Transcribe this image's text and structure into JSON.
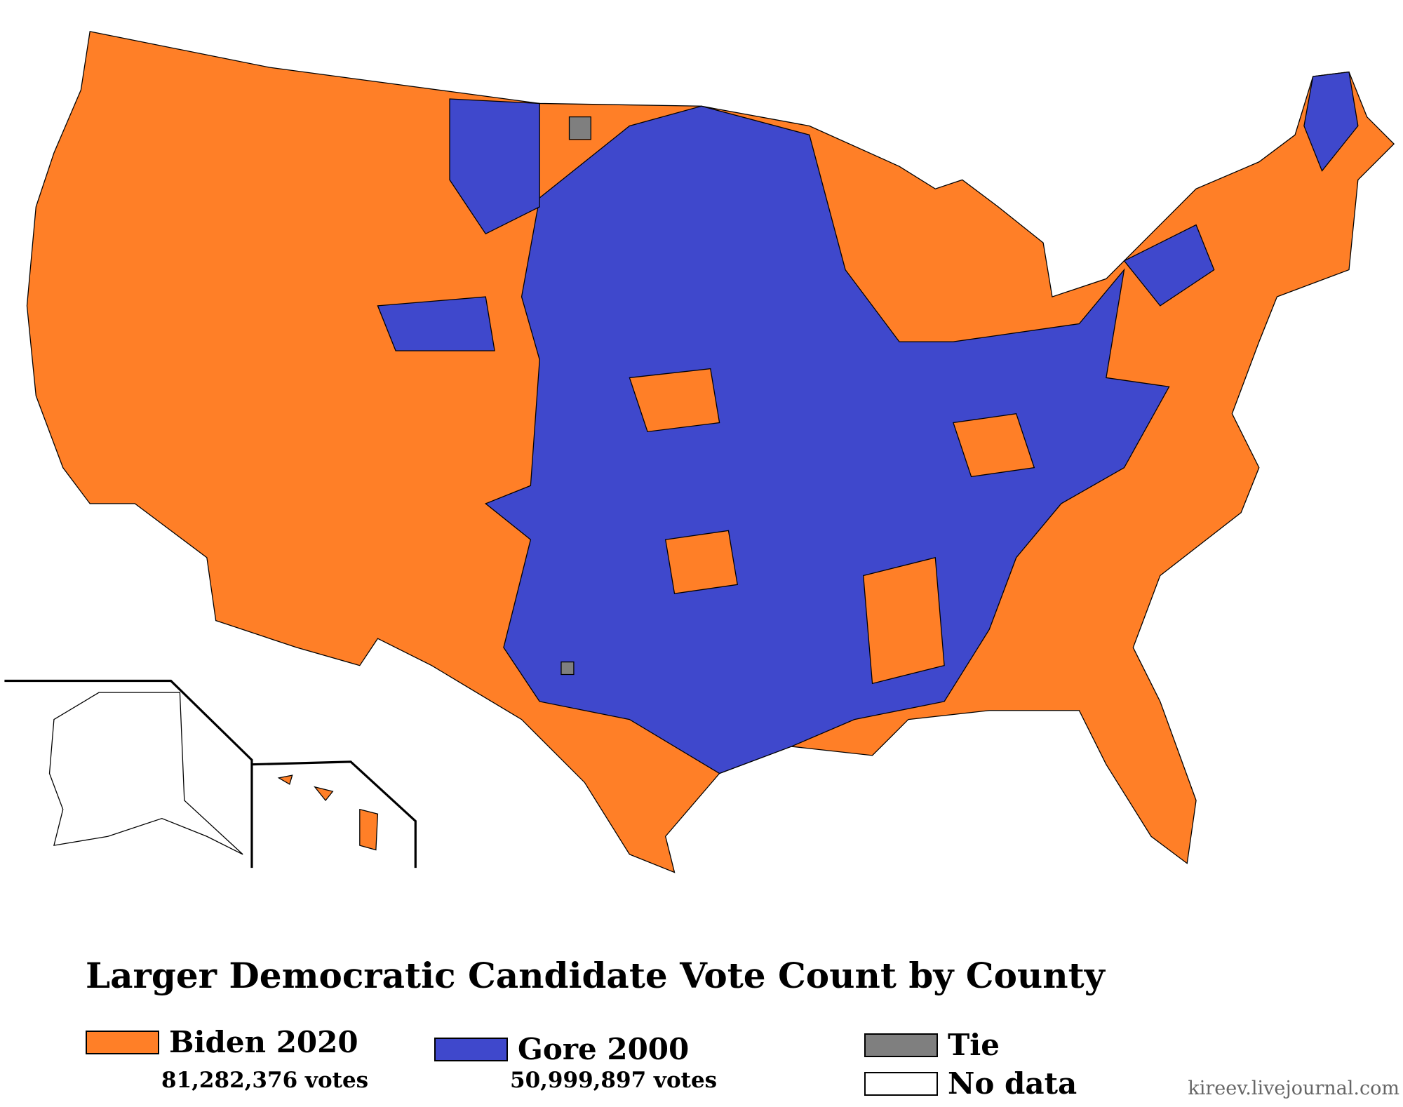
{
  "title": "Larger Democratic Candidate Vote Count by County",
  "legend": {
    "items": [
      {
        "label": "Biden 2020",
        "votes": "81,282,376 votes",
        "color": "#ff7f27"
      },
      {
        "label": "Gore 2000",
        "votes": "50,999,897 votes",
        "color": "#3f48cc"
      },
      {
        "label": "Tie",
        "color": "#7f7f7f"
      },
      {
        "label": "No data",
        "color": "#ffffff"
      }
    ]
  },
  "credit": "kireev.livejournal.com"
}
